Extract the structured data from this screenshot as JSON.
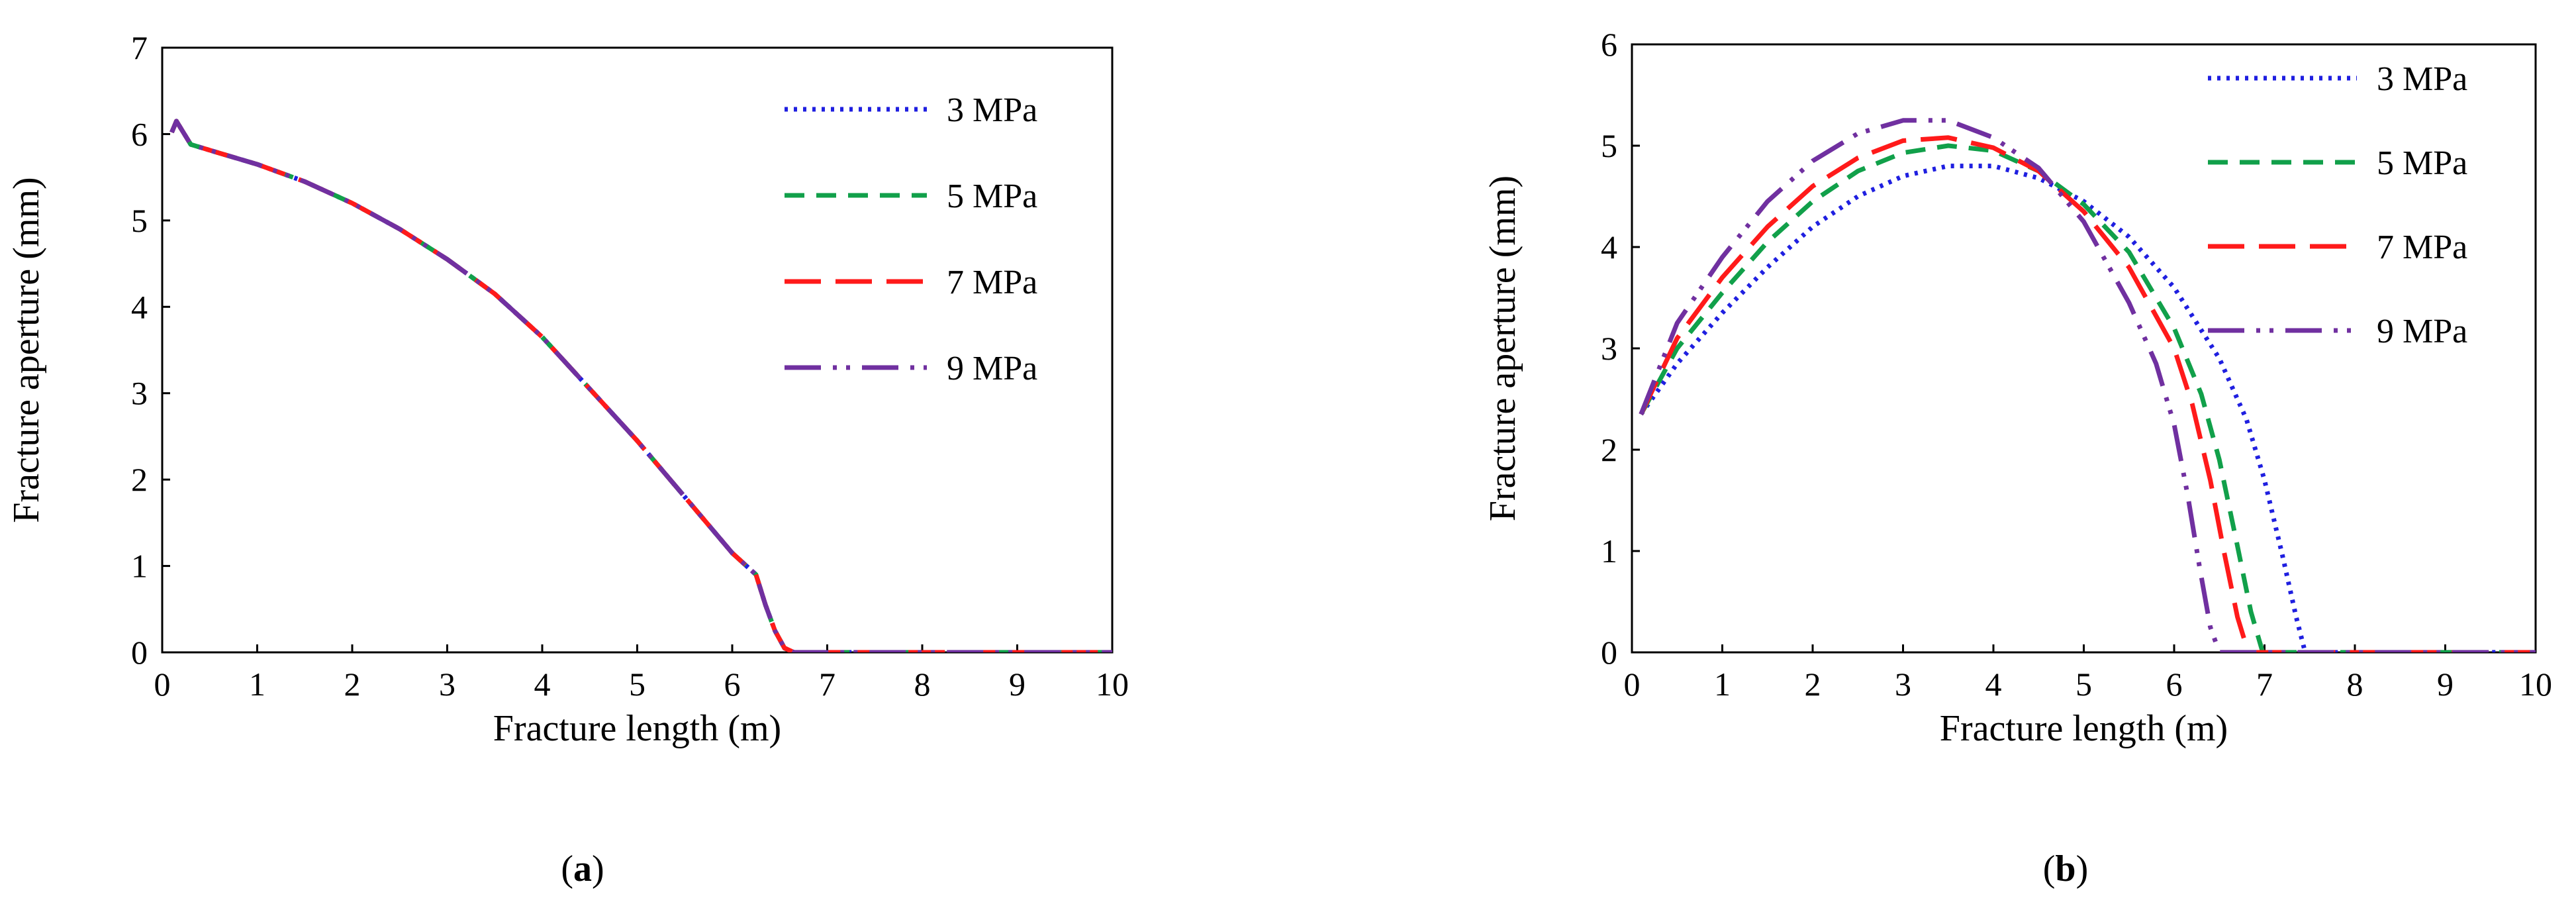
{
  "chart_data": [
    {
      "type": "line",
      "id": "a",
      "caption_open": "(",
      "caption_letter": "a",
      "caption_close": ")",
      "xlabel": "Fracture length  (m)",
      "ylabel": "Fracture aperture (mm)",
      "xlim": [
        0,
        10
      ],
      "ylim": [
        0,
        7
      ],
      "xticks": [
        "0",
        "1",
        "2",
        "3",
        "4",
        "5",
        "6",
        "7",
        "8",
        "9",
        "10"
      ],
      "yticks": [
        "0",
        "1",
        "2",
        "3",
        "4",
        "5",
        "6",
        "7"
      ],
      "legend_position": "top-right",
      "series": [
        {
          "name": "3 MPa",
          "color": "#1f1fe0",
          "dash": "dotted",
          "x": [
            0.1,
            0.15,
            0.3,
            0.6,
            1.0,
            1.5,
            2.0,
            2.5,
            3.0,
            3.5,
            4.0,
            4.5,
            5.0,
            5.5,
            6.0,
            6.25,
            6.35,
            6.45,
            6.55,
            6.65,
            7.0,
            8.0,
            9.0,
            10.0
          ],
          "y": [
            6.02,
            6.15,
            5.88,
            5.78,
            5.65,
            5.45,
            5.2,
            4.9,
            4.55,
            4.15,
            3.65,
            3.05,
            2.45,
            1.8,
            1.15,
            0.9,
            0.55,
            0.25,
            0.05,
            0.0,
            0.0,
            0.0,
            0.0,
            0.0
          ]
        },
        {
          "name": "5 MPa",
          "color": "#11a04a",
          "dash": "short-dash",
          "x": [
            0.1,
            0.15,
            0.3,
            0.6,
            1.0,
            1.5,
            2.0,
            2.5,
            3.0,
            3.5,
            4.0,
            4.5,
            5.0,
            5.5,
            6.0,
            6.25,
            6.35,
            6.45,
            6.55,
            6.65,
            7.0,
            8.0,
            9.0,
            10.0
          ],
          "y": [
            6.02,
            6.15,
            5.88,
            5.78,
            5.65,
            5.45,
            5.2,
            4.9,
            4.55,
            4.15,
            3.65,
            3.05,
            2.45,
            1.8,
            1.15,
            0.9,
            0.55,
            0.25,
            0.05,
            0.0,
            0.0,
            0.0,
            0.0,
            0.0
          ]
        },
        {
          "name": "7 MPa",
          "color": "#ff1a1a",
          "dash": "long-dash",
          "x": [
            0.1,
            0.15,
            0.3,
            0.6,
            1.0,
            1.5,
            2.0,
            2.5,
            3.0,
            3.5,
            4.0,
            4.5,
            5.0,
            5.5,
            6.0,
            6.25,
            6.35,
            6.45,
            6.55,
            6.65,
            7.0,
            8.0,
            9.0,
            10.0
          ],
          "y": [
            6.02,
            6.15,
            5.88,
            5.78,
            5.65,
            5.45,
            5.2,
            4.9,
            4.55,
            4.15,
            3.65,
            3.05,
            2.45,
            1.8,
            1.15,
            0.9,
            0.55,
            0.25,
            0.05,
            0.0,
            0.0,
            0.0,
            0.0,
            0.0
          ]
        },
        {
          "name": "9 MPa",
          "color": "#7030a0",
          "dash": "long-dash-dot-dot",
          "x": [
            0.1,
            0.15,
            0.3,
            0.6,
            1.0,
            1.5,
            2.0,
            2.5,
            3.0,
            3.5,
            4.0,
            4.5,
            5.0,
            5.5,
            6.0,
            6.25,
            6.35,
            6.45,
            6.55,
            6.65,
            7.0,
            8.0,
            9.0,
            10.0
          ],
          "y": [
            6.02,
            6.15,
            5.88,
            5.78,
            5.65,
            5.45,
            5.2,
            4.9,
            4.55,
            4.15,
            3.65,
            3.05,
            2.45,
            1.8,
            1.15,
            0.9,
            0.55,
            0.25,
            0.05,
            0.0,
            0.0,
            0.0,
            0.0,
            0.0
          ]
        }
      ]
    },
    {
      "type": "line",
      "id": "b",
      "caption_open": "(",
      "caption_letter": "b",
      "caption_close": ")",
      "xlabel": "Fracture length  (m)",
      "ylabel": "Fracture aperture (mm)",
      "xlim": [
        0,
        10
      ],
      "ylim": [
        0,
        6
      ],
      "xticks": [
        "0",
        "1",
        "2",
        "3",
        "4",
        "5",
        "6",
        "7",
        "8",
        "9",
        "10"
      ],
      "yticks": [
        "0",
        "1",
        "2",
        "3",
        "4",
        "5",
        "6"
      ],
      "legend_position": "top-right",
      "series": [
        {
          "name": "3 MPa",
          "color": "#1f1fe0",
          "dash": "dotted",
          "x": [
            0.1,
            0.5,
            1.0,
            1.5,
            2.0,
            2.5,
            3.0,
            3.5,
            4.0,
            4.5,
            5.0,
            5.5,
            6.0,
            6.5,
            6.8,
            7.0,
            7.2,
            7.35,
            7.45,
            8.0,
            9.0,
            10.0
          ],
          "y": [
            2.35,
            2.85,
            3.35,
            3.8,
            4.2,
            4.5,
            4.7,
            4.8,
            4.8,
            4.68,
            4.45,
            4.1,
            3.6,
            2.9,
            2.3,
            1.7,
            0.95,
            0.35,
            0.0,
            0.0,
            0.0,
            0.0
          ]
        },
        {
          "name": "5 MPa",
          "color": "#11a04a",
          "dash": "short-dash",
          "x": [
            0.1,
            0.5,
            1.0,
            1.5,
            2.0,
            2.5,
            3.0,
            3.5,
            4.0,
            4.5,
            5.0,
            5.5,
            6.0,
            6.3,
            6.5,
            6.7,
            6.85,
            6.98,
            7.5,
            8.0,
            9.0,
            10.0
          ],
          "y": [
            2.35,
            3.0,
            3.55,
            4.05,
            4.45,
            4.75,
            4.93,
            5.0,
            4.95,
            4.75,
            4.42,
            3.95,
            3.2,
            2.55,
            1.9,
            1.05,
            0.4,
            0.0,
            0.0,
            0.0,
            0.0,
            0.0
          ]
        },
        {
          "name": "7 MPa",
          "color": "#ff1a1a",
          "dash": "long-dash",
          "x": [
            0.1,
            0.5,
            1.0,
            1.5,
            2.0,
            2.5,
            3.0,
            3.5,
            4.0,
            4.5,
            5.0,
            5.5,
            6.0,
            6.2,
            6.4,
            6.55,
            6.7,
            6.82,
            7.5,
            8.0,
            9.0,
            10.0
          ],
          "y": [
            2.35,
            3.1,
            3.7,
            4.2,
            4.6,
            4.88,
            5.05,
            5.08,
            4.98,
            4.75,
            4.35,
            3.8,
            3.0,
            2.45,
            1.7,
            1.0,
            0.35,
            0.0,
            0.0,
            0.0,
            0.0,
            0.0
          ]
        },
        {
          "name": "9 MPa",
          "color": "#7030a0",
          "dash": "long-dash-dot-dot",
          "x": [
            0.1,
            0.5,
            1.0,
            1.5,
            2.0,
            2.5,
            3.0,
            3.5,
            4.0,
            4.5,
            5.0,
            5.5,
            5.8,
            6.0,
            6.15,
            6.28,
            6.4,
            6.5,
            7.0,
            8.0,
            9.0,
            10.0
          ],
          "y": [
            2.35,
            3.25,
            3.9,
            4.45,
            4.85,
            5.12,
            5.25,
            5.25,
            5.08,
            4.78,
            4.25,
            3.45,
            2.85,
            2.25,
            1.55,
            0.85,
            0.25,
            0.0,
            0.0,
            0.0,
            0.0,
            0.0
          ]
        }
      ]
    }
  ]
}
